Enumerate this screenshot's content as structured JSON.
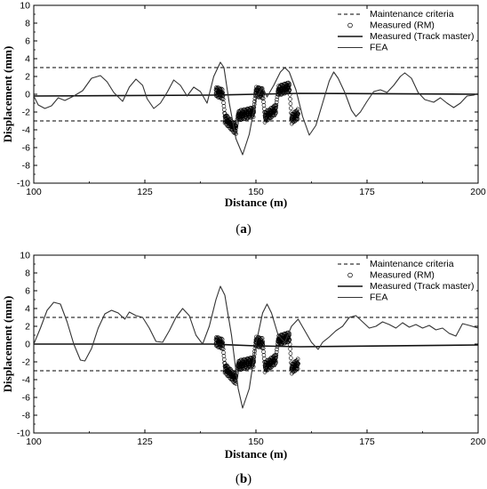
{
  "chart_data": [
    {
      "type": "line",
      "panel_label": "a",
      "xlabel": "Distance (m)",
      "ylabel": "Displacement (mm)",
      "xlim": [
        100,
        200
      ],
      "ylim": [
        -10,
        10
      ],
      "x_ticks": [
        "100",
        "125",
        "150",
        "175",
        "200"
      ],
      "y_ticks": [
        "10",
        "8",
        "6",
        "4",
        "2",
        "0",
        "-2",
        "-4",
        "-6",
        "-8",
        "-10"
      ],
      "legend_position": "top-right",
      "grid": false,
      "series": [
        {
          "name": "Maintenance criteria",
          "style": "dashed",
          "lines_y": [
            3,
            -3
          ]
        },
        {
          "name": "Measured (RM)",
          "style": "circle-markers",
          "segments": [
            [
              141,
              0.5
            ],
            [
              142.5,
              0.2
            ],
            [
              143,
              -2.5
            ],
            [
              145.5,
              -3.8
            ],
            [
              146,
              -2.2
            ],
            [
              149.5,
              -1.8
            ],
            [
              150,
              0.5
            ],
            [
              151.5,
              0.3
            ],
            [
              152,
              -2.4
            ],
            [
              154.5,
              -1.5
            ],
            [
              155,
              0.6
            ],
            [
              157.5,
              1.0
            ],
            [
              158,
              -2.6
            ],
            [
              159.5,
              -2.0
            ]
          ]
        },
        {
          "name": "Measured (Track master)",
          "style": "line",
          "points": [
            [
              100,
              -0.2
            ],
            [
              140,
              -0.1
            ],
            [
              150,
              0.0
            ],
            [
              160,
              0.1
            ],
            [
              200,
              0.0
            ]
          ]
        },
        {
          "name": "FEA",
          "style": "line",
          "points": [
            [
              100,
              -0.2
            ],
            [
              101,
              -1.2
            ],
            [
              102.5,
              -1.6
            ],
            [
              104,
              -1.3
            ],
            [
              105.5,
              -0.4
            ],
            [
              107,
              -0.7
            ],
            [
              109,
              -0.2
            ],
            [
              111,
              0.4
            ],
            [
              113,
              1.8
            ],
            [
              115,
              2.1
            ],
            [
              116.5,
              1.4
            ],
            [
              118,
              0.2
            ],
            [
              120,
              -0.8
            ],
            [
              121.5,
              0.8
            ],
            [
              123,
              1.7
            ],
            [
              124.5,
              1.0
            ],
            [
              125.5,
              -0.5
            ],
            [
              127,
              -1.6
            ],
            [
              128.5,
              -1.0
            ],
            [
              130,
              0.2
            ],
            [
              131.5,
              1.6
            ],
            [
              133,
              1.0
            ],
            [
              134.5,
              -0.2
            ],
            [
              136,
              0.8
            ],
            [
              137.5,
              0.3
            ],
            [
              139,
              -1.0
            ],
            [
              140.5,
              2.0
            ],
            [
              142,
              3.6
            ],
            [
              142.8,
              3.0
            ],
            [
              144,
              -1.0
            ],
            [
              145.5,
              -5.0
            ],
            [
              147,
              -6.8
            ],
            [
              148.5,
              -4.5
            ],
            [
              150,
              -0.5
            ],
            [
              151.5,
              0.8
            ],
            [
              152.5,
              -0.3
            ],
            [
              154,
              1.0
            ],
            [
              155.5,
              2.5
            ],
            [
              156.5,
              3.0
            ],
            [
              157.5,
              2.5
            ],
            [
              159,
              0.5
            ],
            [
              160.5,
              -2.5
            ],
            [
              162,
              -4.6
            ],
            [
              163.5,
              -3.5
            ],
            [
              165,
              -1.0
            ],
            [
              166.5,
              1.5
            ],
            [
              167.5,
              2.5
            ],
            [
              168.5,
              1.8
            ],
            [
              170,
              0.2
            ],
            [
              171.5,
              -1.8
            ],
            [
              172.5,
              -2.5
            ],
            [
              173.5,
              -2.0
            ],
            [
              175,
              -0.8
            ],
            [
              176.5,
              0.3
            ],
            [
              178,
              0.5
            ],
            [
              179.5,
              0.2
            ],
            [
              181,
              1.0
            ],
            [
              182.5,
              2.0
            ],
            [
              183.5,
              2.4
            ],
            [
              185,
              1.8
            ],
            [
              186.5,
              0.2
            ],
            [
              188,
              -0.6
            ],
            [
              190,
              -0.9
            ],
            [
              191.5,
              -0.4
            ],
            [
              193,
              -1.0
            ],
            [
              194.5,
              -1.5
            ],
            [
              196,
              -1.0
            ],
            [
              197.5,
              -0.2
            ],
            [
              199,
              -0.1
            ],
            [
              200,
              0.1
            ]
          ]
        }
      ]
    },
    {
      "type": "line",
      "panel_label": "b",
      "xlabel": "Distance (m)",
      "ylabel": "Displacement (mm)",
      "xlim": [
        100,
        200
      ],
      "ylim": [
        -10,
        10
      ],
      "x_ticks": [
        "100",
        "125",
        "150",
        "175",
        "200"
      ],
      "y_ticks": [
        "10",
        "8",
        "6",
        "4",
        "2",
        "0",
        "-2",
        "-4",
        "-6",
        "-8",
        "-10"
      ],
      "legend_position": "top-right",
      "grid": false,
      "series": [
        {
          "name": "Maintenance criteria",
          "style": "dashed",
          "lines_y": [
            3,
            -3
          ]
        },
        {
          "name": "Measured (RM)",
          "style": "circle-markers",
          "segments": [
            [
              141,
              0.5
            ],
            [
              142.5,
              0.2
            ],
            [
              143,
              -2.5
            ],
            [
              145.5,
              -3.8
            ],
            [
              146,
              -2.2
            ],
            [
              149.5,
              -1.8
            ],
            [
              150,
              0.5
            ],
            [
              151.5,
              0.3
            ],
            [
              152,
              -2.4
            ],
            [
              154.5,
              -1.5
            ],
            [
              155,
              0.6
            ],
            [
              157.5,
              1.0
            ],
            [
              158,
              -2.6
            ],
            [
              159.5,
              -2.0
            ]
          ]
        },
        {
          "name": "Measured (Track master)",
          "style": "line",
          "points": [
            [
              100,
              0.0
            ],
            [
              140,
              0.0
            ],
            [
              150,
              -0.2
            ],
            [
              160,
              -0.3
            ],
            [
              200,
              -0.1
            ]
          ]
        },
        {
          "name": "FEA",
          "style": "line",
          "points": [
            [
              100,
              0.0
            ],
            [
              101.5,
              1.8
            ],
            [
              103,
              3.8
            ],
            [
              104.5,
              4.7
            ],
            [
              106,
              4.5
            ],
            [
              107.5,
              2.5
            ],
            [
              109,
              0.0
            ],
            [
              110.5,
              -1.8
            ],
            [
              111.5,
              -1.9
            ],
            [
              113,
              -0.5
            ],
            [
              114.5,
              1.8
            ],
            [
              116,
              3.4
            ],
            [
              117.5,
              3.8
            ],
            [
              119,
              3.5
            ],
            [
              120.5,
              2.8
            ],
            [
              121.5,
              3.6
            ],
            [
              123,
              3.2
            ],
            [
              124.5,
              3.0
            ],
            [
              126,
              1.8
            ],
            [
              127.5,
              0.3
            ],
            [
              129,
              0.2
            ],
            [
              130.5,
              1.5
            ],
            [
              132,
              3.0
            ],
            [
              133.5,
              4.0
            ],
            [
              135,
              3.2
            ],
            [
              136.5,
              1.0
            ],
            [
              138,
              0.0
            ],
            [
              139.5,
              2.0
            ],
            [
              141,
              5.0
            ],
            [
              142,
              6.5
            ],
            [
              143,
              5.5
            ],
            [
              144.5,
              1.0
            ],
            [
              146,
              -5.0
            ],
            [
              147,
              -7.2
            ],
            [
              148.5,
              -5.0
            ],
            [
              150,
              0.0
            ],
            [
              151.5,
              3.5
            ],
            [
              152.5,
              4.5
            ],
            [
              153.5,
              3.5
            ],
            [
              155,
              1.0
            ],
            [
              156.5,
              0.2
            ],
            [
              158,
              2.0
            ],
            [
              159.5,
              2.8
            ],
            [
              161,
              1.5
            ],
            [
              162.5,
              0.2
            ],
            [
              164,
              -0.6
            ],
            [
              165,
              0.2
            ],
            [
              166.5,
              0.8
            ],
            [
              168,
              1.5
            ],
            [
              169.5,
              2.0
            ],
            [
              171,
              3.0
            ],
            [
              172.5,
              3.2
            ],
            [
              174,
              2.5
            ],
            [
              175.5,
              1.8
            ],
            [
              177,
              2.0
            ],
            [
              178.5,
              2.5
            ],
            [
              180,
              2.2
            ],
            [
              181.5,
              1.8
            ],
            [
              183,
              2.4
            ],
            [
              184.5,
              1.9
            ],
            [
              186,
              2.2
            ],
            [
              187.5,
              1.8
            ],
            [
              189,
              2.1
            ],
            [
              190.5,
              1.6
            ],
            [
              192,
              1.8
            ],
            [
              193.5,
              1.2
            ],
            [
              195,
              0.9
            ],
            [
              196.5,
              2.3
            ],
            [
              198,
              2.1
            ],
            [
              200,
              1.8
            ]
          ]
        }
      ]
    }
  ]
}
